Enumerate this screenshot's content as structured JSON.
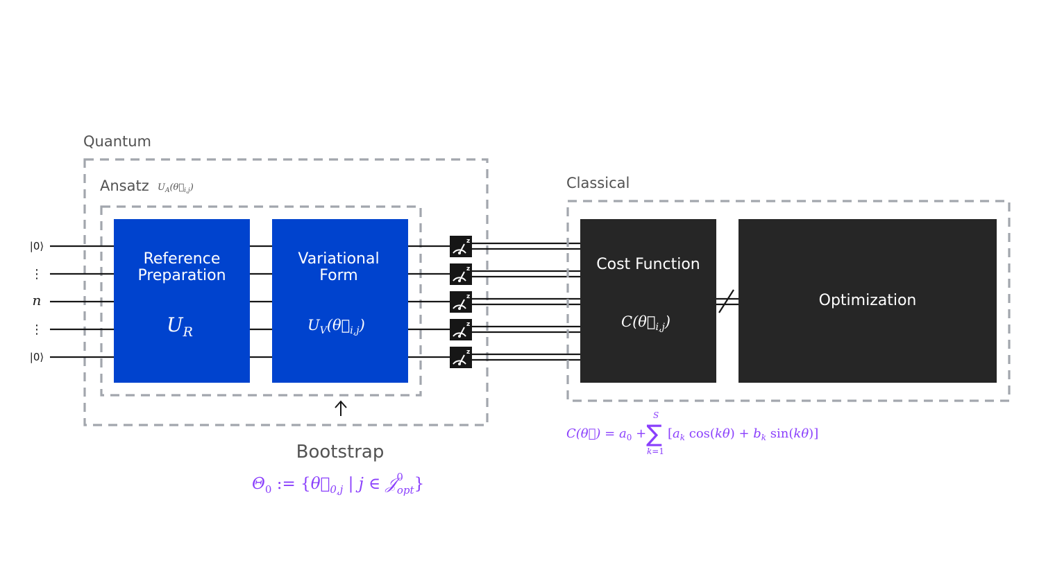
{
  "quantum": {
    "label": "Quantum",
    "ansatz_label": "Ansatz",
    "ansatz_op": "U_A(θ⃗_{i,j})",
    "qubit_labels": [
      "|0⟩",
      "⋮",
      "n",
      "⋮",
      "|0⟩"
    ],
    "ref_prep": {
      "title": "Reference Preparation",
      "line1": "Reference",
      "line2": "Preparation",
      "op": "U_R"
    },
    "var_form": {
      "title": "Variational Form",
      "line1": "Variational",
      "line2": "Form",
      "op": "U_V(θ⃗_{i,j})"
    },
    "measure_count": 5
  },
  "classical": {
    "label": "Classical",
    "cost": {
      "title": "Cost Function",
      "op": "C(θ⃗_{i,j})"
    },
    "optimization": "Optimization",
    "formula": "C(θ⃗) = a₀ + Σ_{k=1}^{S} [a_k cos(kθ) + b_k sin(kθ)]"
  },
  "bootstrap": {
    "label": "Bootstrap",
    "formula": "Θ₀ := {θ⃗_{0,j} | j ∈ 𝒥⁰_opt}"
  },
  "colors": {
    "blue": "#0043ce",
    "dark": "#262626",
    "dash": "#a2a6ad",
    "purple": "#8a3ffc",
    "text": "#525252"
  }
}
